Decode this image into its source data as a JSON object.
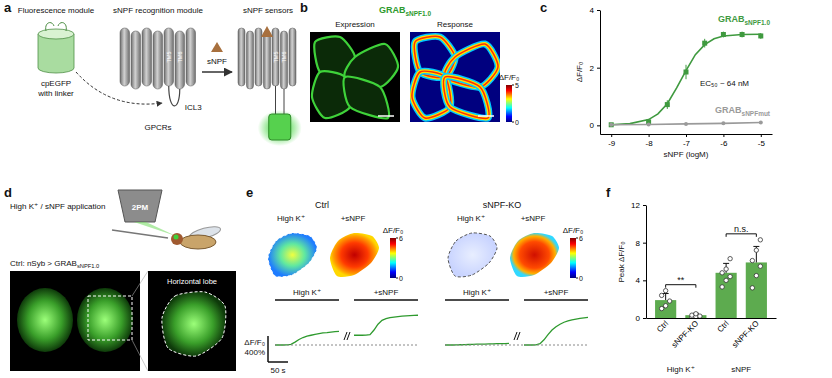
{
  "chart_data": [
    {
      "type": "line",
      "x_label": "sNPF (logM)",
      "y_label": "ΔF/F₀",
      "xlim": [
        -9.3,
        -4.7
      ],
      "xticks": [
        -9,
        -8,
        -7,
        -6,
        -5
      ],
      "ylim": [
        -0.3,
        4
      ],
      "yticks": [
        0,
        2,
        4
      ],
      "annotations": [
        "EC₅₀ ~ 64 nM"
      ],
      "series": [
        {
          "name": "GRAB",
          "name_sub": "sNPF1.0",
          "type": "scatter",
          "marker": "square",
          "color": "#3f9a3f",
          "x": [
            -9,
            -8,
            -7.5,
            -7,
            -6.5,
            -6,
            -5.5,
            -5
          ],
          "values": [
            0.02,
            0.12,
            0.72,
            1.85,
            2.85,
            3.15,
            3.15,
            3.1
          ],
          "error": [
            0.03,
            0.05,
            0.15,
            0.25,
            0.15,
            0.1,
            0.1,
            0.1
          ]
        },
        {
          "type": "line",
          "color": "#3f9a3f",
          "x": [
            -9,
            -8.5,
            -8,
            -7.75,
            -7.5,
            -7.25,
            -7,
            -6.75,
            -6.5,
            -6.25,
            -6,
            -5.5,
            -5
          ],
          "values": [
            0.02,
            0.06,
            0.2,
            0.4,
            0.75,
            1.3,
            1.9,
            2.45,
            2.8,
            3.0,
            3.1,
            3.15,
            3.16
          ]
        },
        {
          "name": "GRAB",
          "name_sub": "sNPFmut",
          "type": "line",
          "marker": "circle",
          "color": "#9a9a9a",
          "x": [
            -9,
            -8,
            -7,
            -6,
            -5
          ],
          "values": [
            0.02,
            0.03,
            0.05,
            0.07,
            0.1
          ]
        }
      ]
    },
    {
      "type": "bar",
      "y_label": "Peak ΔF/F₀",
      "categories": [
        "Ctrl",
        "sNPF-KO",
        "Ctrl",
        "sNPF-KO"
      ],
      "groups": [
        "High K⁺",
        "sNPF"
      ],
      "values": [
        1.9,
        0.3,
        4.8,
        5.9
      ],
      "error": [
        0.7,
        0.2,
        1.0,
        1.7
      ],
      "points": [
        [
          1.0,
          1.3,
          1.8,
          2.4,
          2.9
        ],
        [
          0.1,
          0.15,
          0.2,
          0.3,
          0.45
        ],
        [
          3.3,
          4.0,
          4.4,
          4.8,
          5.2,
          6.3
        ],
        [
          3.2,
          4.5,
          5.5,
          6.1,
          7.2,
          8.3
        ]
      ],
      "color": "#5dab4f",
      "ylim": [
        0,
        12
      ],
      "yticks": [
        0,
        4,
        8,
        12
      ],
      "annotations": [
        "**",
        "n.s."
      ]
    }
  ],
  "figure": {
    "panel_labels": [
      "a",
      "b",
      "c",
      "d",
      "e",
      "f"
    ],
    "a": {
      "fluorescence_module": "Fluorescence module",
      "recognition_module": "sNPF recognition module",
      "sensors": "sNPF sensors",
      "cpegfp": [
        "cpEGFP",
        "with linker"
      ],
      "icl3": "ICL3",
      "gpcrs": "GPCRs",
      "ligand": "sNPF",
      "helices": [
        "TM5",
        "TM6"
      ]
    },
    "b": {
      "title": {
        "text": "GRAB",
        "sub": "sNPF1.0"
      },
      "expression": "Expression",
      "response": "Response",
      "colorbar": {
        "label": "ΔF/F₀",
        "range": [
          0,
          5
        ],
        "ticks": [
          0,
          5
        ]
      }
    },
    "d": {
      "application": "High K⁺ / sNPF application",
      "microscope": "2PM",
      "genotype": {
        "text": "Ctrl: nSyb > GRAB",
        "sub": "sNPF1.0"
      },
      "region": "Horizontal lobe"
    },
    "e": {
      "conditions": [
        "High K⁺",
        "+sNPF"
      ],
      "colorbar": {
        "label": "ΔF/F₀",
        "range": [
          0,
          6
        ],
        "ticks": [
          0,
          6
        ]
      },
      "scalebar_x": {
        "value": 50,
        "label": "50 s"
      },
      "scalebar_y": {
        "value": 400,
        "label": "400%",
        "title": "ΔF/F₀"
      },
      "groups": [
        {
          "label": "Ctrl",
          "traces": [
            {
              "x": [
                0,
                10,
                20,
                30,
                40,
                50,
                60,
                70,
                80,
                90,
                100,
                110,
                120,
                130,
                140,
                150,
                160
              ],
              "values": [
                0,
                0,
                0,
                3,
                10,
                45,
                85,
                115,
                135,
                150,
                165,
                175,
                185,
                190,
                198,
                205,
                210
              ]
            },
            {
              "x": [
                0,
                10,
                20,
                30,
                40,
                50,
                60,
                70,
                80,
                90,
                100,
                110,
                120,
                130,
                140,
                150,
                160
              ],
              "values": [
                150,
                150,
                150,
                152,
                160,
                230,
                320,
                380,
                405,
                420,
                430,
                438,
                444,
                448,
                452,
                455,
                458
              ]
            }
          ]
        },
        {
          "label": "sNPF-KO",
          "traces": [
            {
              "x": [
                0,
                10,
                20,
                30,
                40,
                50,
                60,
                70,
                80,
                90,
                100,
                110,
                120,
                130,
                140,
                150,
                160
              ],
              "values": [
                0,
                0,
                0,
                2,
                4,
                6,
                8,
                10,
                12,
                14,
                15,
                16,
                18,
                20,
                20,
                22,
                24
              ]
            },
            {
              "x": [
                0,
                10,
                20,
                30,
                40,
                50,
                60,
                70,
                80,
                90,
                100,
                110,
                120,
                130,
                140,
                150,
                160
              ],
              "values": [
                0,
                0,
                0,
                2,
                20,
                80,
                160,
                230,
                280,
                320,
                350,
                370,
                385,
                398,
                408,
                418,
                425
              ]
            }
          ]
        }
      ]
    }
  }
}
